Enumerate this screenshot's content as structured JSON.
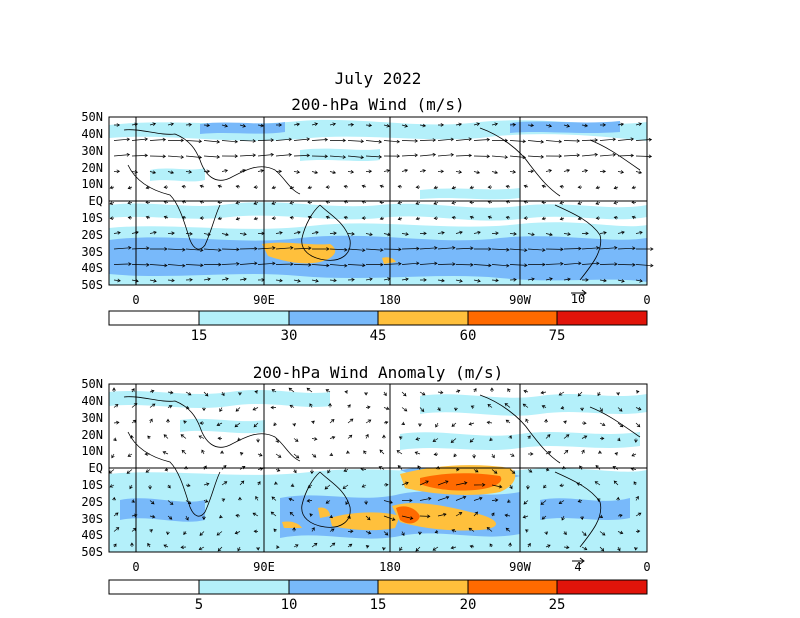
{
  "header": {
    "month_year": "July 2022"
  },
  "panels": [
    {
      "title": "200-hPa Wind (m/s)",
      "lat_labels": [
        "50N",
        "40N",
        "30N",
        "20N",
        "10N",
        "EQ",
        "10S",
        "20S",
        "30S",
        "40S",
        "50S"
      ],
      "lon_labels": [
        "0",
        "90E",
        "180",
        "90W",
        "0"
      ],
      "reference_vector": "10",
      "colorbar": {
        "ticks": [
          "15",
          "30",
          "45",
          "60",
          "75"
        ],
        "colors": [
          "#ffffff",
          "#b4f0fa",
          "#78b9fa",
          "#ffc03c",
          "#ff6a00",
          "#e1140a"
        ]
      }
    },
    {
      "title": "200-hPa Wind Anomaly (m/s)",
      "lat_labels": [
        "50N",
        "40N",
        "30N",
        "20N",
        "10N",
        "EQ",
        "10S",
        "20S",
        "30S",
        "40S",
        "50S"
      ],
      "lon_labels": [
        "0",
        "90E",
        "180",
        "90W",
        "0"
      ],
      "reference_vector": "4",
      "colorbar": {
        "ticks": [
          "5",
          "10",
          "15",
          "20",
          "25"
        ],
        "colors": [
          "#ffffff",
          "#b4f0fa",
          "#78b9fa",
          "#ffc03c",
          "#ff6a00",
          "#e1140a"
        ]
      }
    }
  ]
}
